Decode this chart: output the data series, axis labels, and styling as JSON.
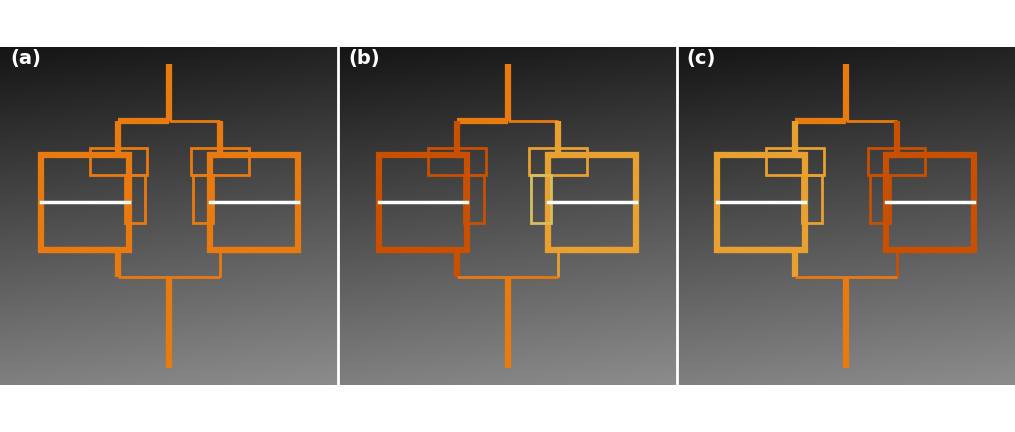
{
  "bg_left_color": "#1a1a1a",
  "bg_right_color": "#707070",
  "panel_labels": [
    "(a)",
    "(b)",
    "(c)"
  ],
  "panel_label_color": "#ffffff",
  "panel_label_fontsize": 14,
  "panels": [
    {
      "id": "a",
      "colors": {
        "main": "#e87a10",
        "left_branch": "#e87a10",
        "right_branch": "#e87a10",
        "left_resistor": "#e87a10",
        "right_resistor": "#e87a10",
        "top_junction": "#e87a10",
        "bottom_junction": "#e87a10"
      }
    },
    {
      "id": "b",
      "colors": {
        "main": "#e87a10",
        "left_branch": "#c85000",
        "right_branch": "#e8a030",
        "left_resistor": "#c85000",
        "right_resistor": "#d4c060",
        "top_junction": "#e87a10",
        "bottom_junction": "#e87a10"
      }
    },
    {
      "id": "c",
      "colors": {
        "main": "#e87a10",
        "left_branch": "#e8a030",
        "right_branch": "#c85000",
        "left_resistor": "#e8a030",
        "right_resistor": "#c85000",
        "top_junction": "#e87a10",
        "bottom_junction": "#e87a10"
      }
    }
  ],
  "lw_thick": 4.5,
  "lw_thin": 2.0
}
